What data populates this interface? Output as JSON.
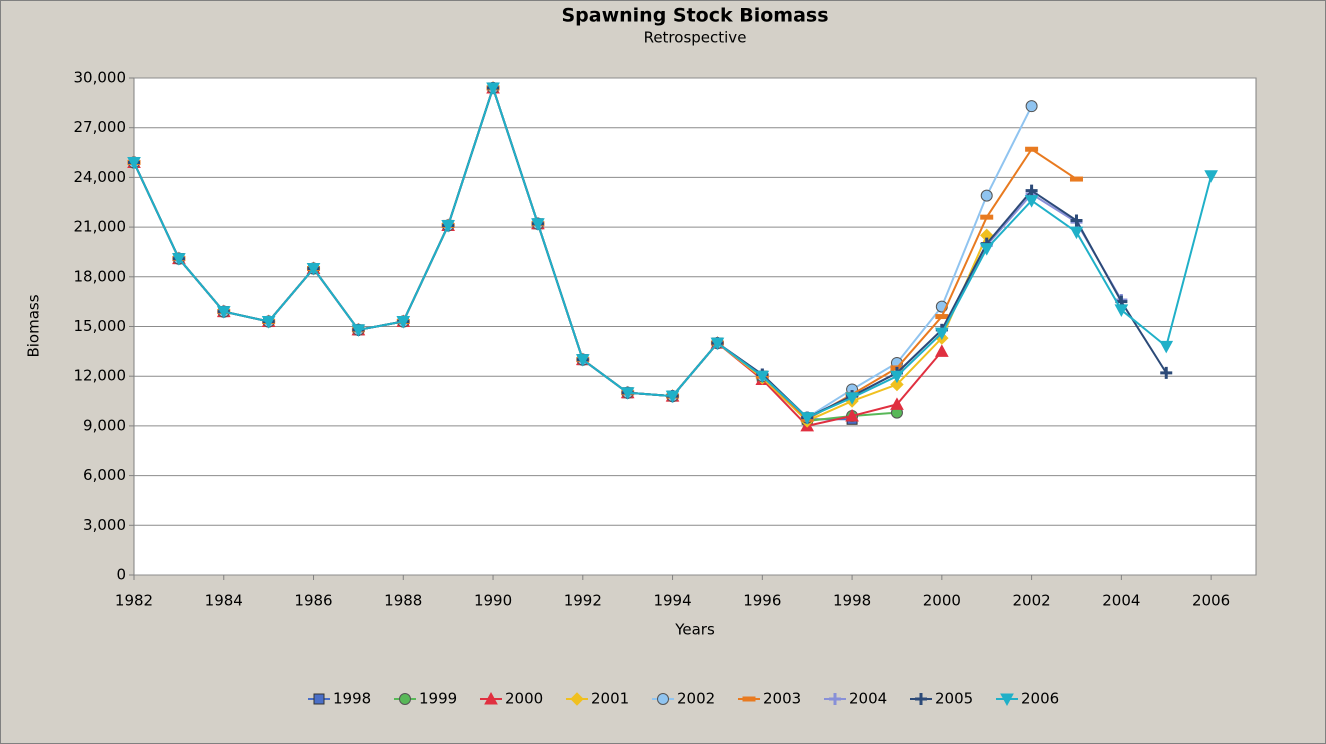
{
  "chart_data": {
    "type": "line",
    "title": "Spawning Stock Biomass",
    "subtitle": "Retrospective",
    "x_label": "Years",
    "y_label": "Biomass",
    "x": [
      1982,
      1983,
      1984,
      1985,
      1986,
      1987,
      1988,
      1989,
      1990,
      1991,
      1992,
      1993,
      1994,
      1995,
      1996,
      1997,
      1998,
      1999,
      2000,
      2001,
      2002,
      2003,
      2004,
      2005,
      2006
    ],
    "xlim": [
      1982,
      2007
    ],
    "xticks": [
      1982,
      1984,
      1986,
      1988,
      1990,
      1992,
      1994,
      1996,
      1998,
      2000,
      2002,
      2004,
      2006
    ],
    "ylim": [
      0,
      30000
    ],
    "yticks": [
      0,
      {
        "value": 3000,
        "label": "3,000"
      },
      {
        "value": 6000,
        "label": "6,000"
      },
      {
        "value": 9000,
        "label": "9,000"
      },
      {
        "value": 12000,
        "label": "12,000"
      },
      {
        "value": 15000,
        "label": "15,000"
      },
      {
        "value": 18000,
        "label": "18,000"
      },
      {
        "value": 21000,
        "label": "21,000"
      },
      {
        "value": 24000,
        "label": "24,000"
      },
      {
        "value": 27000,
        "label": "27,000"
      },
      {
        "value": 30000,
        "label": "30,000"
      }
    ],
    "grid": true,
    "legend": "bottom",
    "series": [
      {
        "name": "1998",
        "color": "#4a6fc8",
        "marker": "square",
        "values": [
          24900,
          19100,
          15900,
          15300,
          18500,
          14800,
          15300,
          21100,
          29400,
          21200,
          13000,
          11000,
          10800,
          14000,
          12000,
          9400,
          9400,
          null,
          null,
          null,
          null,
          null,
          null,
          null,
          null
        ]
      },
      {
        "name": "1999",
        "color": "#58b858",
        "marker": "circle",
        "values": [
          24900,
          19100,
          15900,
          15300,
          18500,
          14800,
          15300,
          21100,
          29400,
          21200,
          13000,
          11000,
          10800,
          14000,
          11900,
          9300,
          9600,
          9800,
          null,
          null,
          null,
          null,
          null,
          null,
          null
        ]
      },
      {
        "name": "2000",
        "color": "#e03040",
        "marker": "triangle",
        "values": [
          24900,
          19100,
          15900,
          15300,
          18500,
          14800,
          15300,
          21100,
          29400,
          21200,
          13000,
          11000,
          10800,
          14000,
          11800,
          9000,
          9600,
          10300,
          13500,
          null,
          null,
          null,
          null,
          null,
          null
        ]
      },
      {
        "name": "2001",
        "color": "#f0c020",
        "marker": "diamond",
        "values": [
          24900,
          19100,
          15900,
          15300,
          18500,
          14800,
          15300,
          21100,
          29400,
          21200,
          13000,
          11000,
          10800,
          14000,
          11900,
          9300,
          10500,
          11500,
          14300,
          20500,
          null,
          null,
          null,
          null,
          null
        ]
      },
      {
        "name": "2002",
        "color": "#90c4f0",
        "marker": "circle",
        "values": [
          24900,
          19100,
          15900,
          15300,
          18500,
          14800,
          15300,
          21100,
          29400,
          21200,
          13000,
          11000,
          10800,
          14000,
          12000,
          9500,
          11200,
          12800,
          16200,
          22900,
          28300,
          null,
          null,
          null,
          null
        ]
      },
      {
        "name": "2003",
        "color": "#e87a20",
        "marker": "dash",
        "values": [
          24900,
          19100,
          15900,
          15300,
          18500,
          14800,
          15300,
          21100,
          29400,
          21200,
          13000,
          11000,
          10800,
          14000,
          12000,
          9400,
          10900,
          12500,
          15600,
          21600,
          25700,
          23900,
          null,
          null,
          null
        ]
      },
      {
        "name": "2004",
        "color": "#8890d8",
        "marker": "plus",
        "values": [
          24900,
          19100,
          15900,
          15300,
          18500,
          14800,
          15300,
          21100,
          29400,
          21200,
          13000,
          11000,
          10800,
          14000,
          12100,
          9500,
          10800,
          12200,
          14800,
          19900,
          23000,
          21300,
          16600,
          null,
          null
        ]
      },
      {
        "name": "2005",
        "color": "#2c4a78",
        "marker": "plus",
        "values": [
          24900,
          19100,
          15900,
          15300,
          18500,
          14800,
          15300,
          21100,
          29400,
          21200,
          13000,
          11000,
          10800,
          14000,
          12100,
          9500,
          10800,
          12200,
          14800,
          20000,
          23200,
          21400,
          16500,
          12200,
          null
        ]
      },
      {
        "name": "2006",
        "color": "#20b0c8",
        "marker": "down-triangle",
        "values": [
          24900,
          19100,
          15900,
          15300,
          18500,
          14800,
          15300,
          21100,
          29400,
          21200,
          13000,
          11000,
          10800,
          14000,
          12000,
          9500,
          10700,
          12000,
          14600,
          19700,
          22600,
          20700,
          16000,
          13800,
          24100
        ]
      }
    ]
  }
}
